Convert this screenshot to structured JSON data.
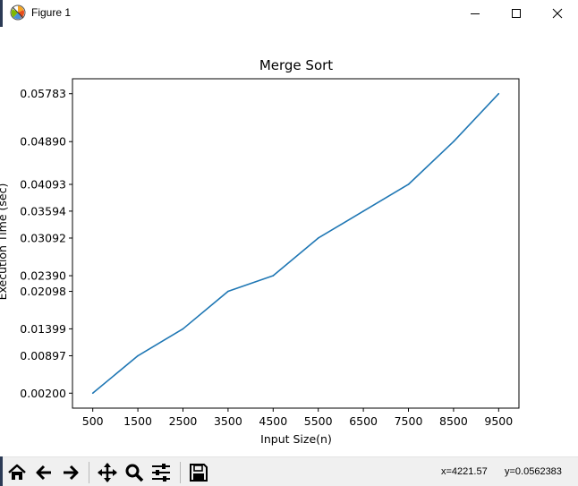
{
  "window": {
    "title": "Figure 1"
  },
  "toolbar": {
    "buttons": [
      "home",
      "back",
      "forward",
      "pan",
      "zoom",
      "configure-subplots",
      "save"
    ],
    "coord_x": "x=4221.57",
    "coord_y": "y=0.0562383"
  },
  "colors": {
    "line": "#1f77b4",
    "toolbar_bg": "#f0f0f0"
  },
  "chart_data": {
    "type": "line",
    "title": "Merge Sort",
    "xlabel": "Input Size(n)",
    "ylabel": "Execution Time (sec)",
    "x": [
      500,
      1500,
      2500,
      3500,
      4500,
      5500,
      6500,
      7500,
      8500,
      9500
    ],
    "y": [
      0.002,
      0.00897,
      0.01399,
      0.02098,
      0.0239,
      0.03092,
      0.03594,
      0.04093,
      0.0489,
      0.05783
    ],
    "xticks": [
      500,
      1500,
      2500,
      3500,
      4500,
      5500,
      6500,
      7500,
      8500,
      9500
    ],
    "ytick_labels": [
      "0.00200",
      "0.00897",
      "0.01399",
      "0.02098",
      "0.02390",
      "0.03092",
      "0.03594",
      "0.04093",
      "0.04890",
      "0.05783"
    ],
    "xlim": [
      50,
      9950
    ],
    "ylim": [
      -0.00079,
      0.06062
    ],
    "grid": false,
    "legend": "none"
  }
}
